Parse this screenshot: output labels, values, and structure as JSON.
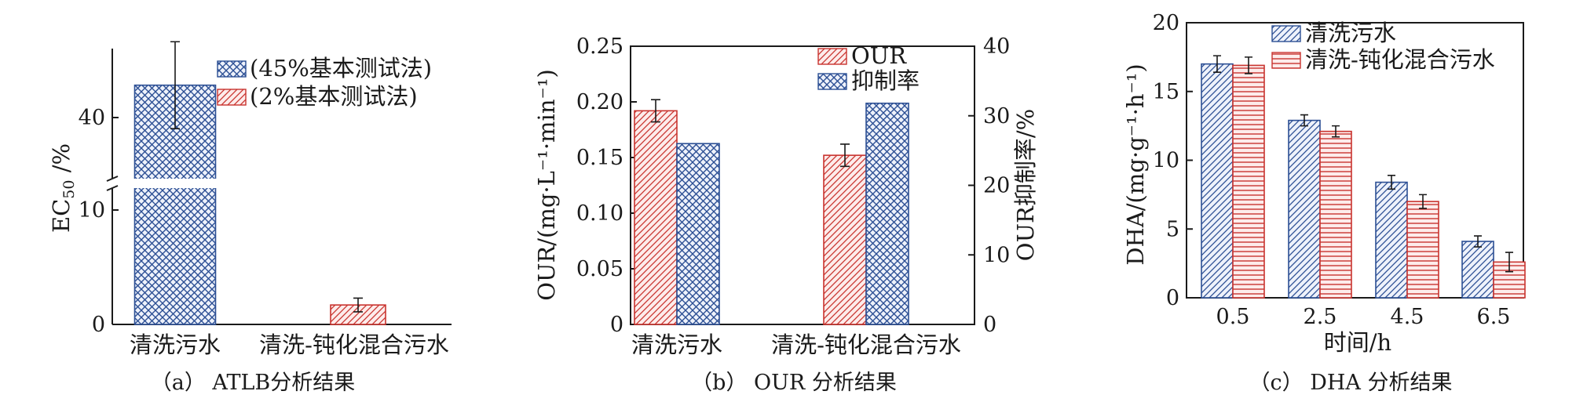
{
  "colors": {
    "blue": "#2c4f94",
    "red": "#c9342f",
    "blue_fill": "#eef2fb",
    "red_fill": "#fdeceb"
  },
  "chart_data": [
    {
      "id": "a",
      "type": "bar",
      "caption": "（a） ATLB分析结果",
      "ylabel": "EC50 /%",
      "ylabel_main": "EC",
      "ylabel_sub": "50",
      "ylabel_unit": " /%",
      "categories": [
        "清洗污水",
        "清洗-钝化混合污水"
      ],
      "y_axis": "broken",
      "y_lower_ticks": [
        "0",
        "10"
      ],
      "y_upper_ticks": [
        "40"
      ],
      "series": [
        {
          "name": "(45%基本测试法)",
          "pattern": "crosshatch-blue",
          "values": [
            43.5,
            null
          ],
          "errors": [
            4.7,
            null
          ]
        },
        {
          "name": "(2%基本测试法)",
          "pattern": "diag-red",
          "values": [
            null,
            1.7
          ],
          "errors": [
            null,
            0.6
          ]
        }
      ],
      "legend_position": "top-right"
    },
    {
      "id": "b",
      "type": "bar",
      "caption": "（b） OUR 分析结果",
      "ylabel": "OUR/(mg·L⁻¹·min⁻¹)",
      "ylabel_right": "OUR抑制率/%",
      "categories": [
        "清洗污水",
        "清洗-钝化混合污水"
      ],
      "ylim": [
        0,
        0.25
      ],
      "yticks": [
        "0",
        "0.05",
        "0.10",
        "0.15",
        "0.20",
        "0.25"
      ],
      "ylim_right": [
        0,
        40
      ],
      "yticks_right": [
        "0",
        "10",
        "20",
        "30",
        "40"
      ],
      "series": [
        {
          "name": "OUR",
          "pattern": "diag-red",
          "axis": "left",
          "values": [
            0.192,
            0.152
          ],
          "errors": [
            0.01,
            0.01
          ]
        },
        {
          "name": "抑制率",
          "pattern": "crosshatch-blue",
          "axis": "right",
          "values": [
            26.0,
            31.8
          ],
          "errors": [
            null,
            null
          ]
        }
      ],
      "legend_position": "top-right"
    },
    {
      "id": "c",
      "type": "bar",
      "caption": "（c） DHA 分析结果",
      "ylabel": "DHA/(mg·g⁻¹·h⁻¹)",
      "xlabel": "时间/h",
      "categories": [
        "0.5",
        "2.5",
        "4.5",
        "6.5"
      ],
      "ylim": [
        0,
        20
      ],
      "yticks": [
        "0",
        "5",
        "10",
        "15",
        "20"
      ],
      "series": [
        {
          "name": "清洗污水",
          "pattern": "diag-blue",
          "values": [
            17.0,
            12.9,
            8.4,
            4.1
          ],
          "errors": [
            0.6,
            0.4,
            0.5,
            0.4
          ]
        },
        {
          "name": "清洗-钝化混合污水",
          "pattern": "hstripe-red",
          "values": [
            16.9,
            12.1,
            7.0,
            2.6
          ],
          "errors": [
            0.6,
            0.4,
            0.5,
            0.7
          ]
        }
      ],
      "legend_position": "top-left"
    }
  ]
}
